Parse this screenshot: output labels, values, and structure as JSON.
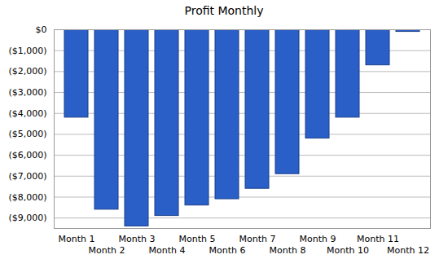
{
  "chart_data": {
    "type": "bar",
    "title": "Profit Monthly",
    "categories": [
      "Month 1",
      "Month 2",
      "Month 3",
      "Month 4",
      "Month 5",
      "Month 6",
      "Month 7",
      "Month 8",
      "Month 9",
      "Month 10",
      "Month 11",
      "Month 12"
    ],
    "values": [
      -4200,
      -8600,
      -9400,
      -8900,
      -8400,
      -8100,
      -7600,
      -6900,
      -5200,
      -4200,
      -1700,
      -100
    ],
    "color": "#2a5fc8",
    "ylim": [
      -9500,
      0
    ],
    "yticks": [
      {
        "value": 0,
        "label": "$0"
      },
      {
        "value": -1000,
        "label": "($1,000)"
      },
      {
        "value": -2000,
        "label": "($2,000)"
      },
      {
        "value": -3000,
        "label": "($3,000)"
      },
      {
        "value": -4000,
        "label": "($4,000)"
      },
      {
        "value": -5000,
        "label": "($5,000)"
      },
      {
        "value": -6000,
        "label": "($6,000)"
      },
      {
        "value": -7000,
        "label": "($7,000)"
      },
      {
        "value": -8000,
        "label": "($8,000)"
      },
      {
        "value": -9000,
        "label": "($9,000)"
      }
    ],
    "grid": true
  }
}
